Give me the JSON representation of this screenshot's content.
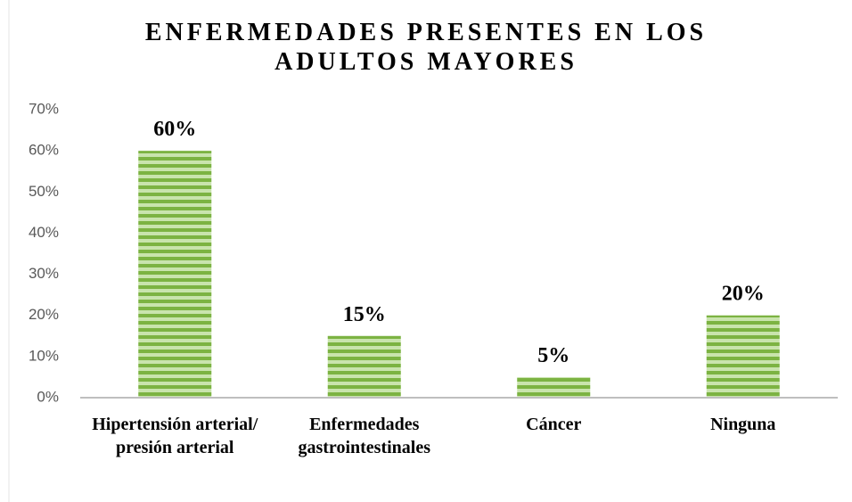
{
  "chart_data": {
    "type": "bar",
    "title": "ENFERMEDADES PRESENTES EN LOS ADULTOS MAYORES",
    "categories": [
      "Hipertensión arterial/ presión arterial",
      "Enfermedades gastrointestinales",
      "Cáncer",
      "Ninguna"
    ],
    "values": [
      60,
      15,
      5,
      20
    ],
    "value_labels": [
      "60%",
      "15%",
      "5%",
      "20%"
    ],
    "color": "#7cb342",
    "ylim": [
      0,
      70
    ],
    "yticks": [
      {
        "value": 0,
        "label": "0%"
      },
      {
        "value": 10,
        "label": "10%"
      },
      {
        "value": 20,
        "label": "20%"
      },
      {
        "value": 30,
        "label": "30%"
      },
      {
        "value": 40,
        "label": "40%"
      },
      {
        "value": 50,
        "label": "50%"
      },
      {
        "value": 60,
        "label": "60%"
      },
      {
        "value": 70,
        "label": "70%"
      }
    ],
    "grid": false
  }
}
